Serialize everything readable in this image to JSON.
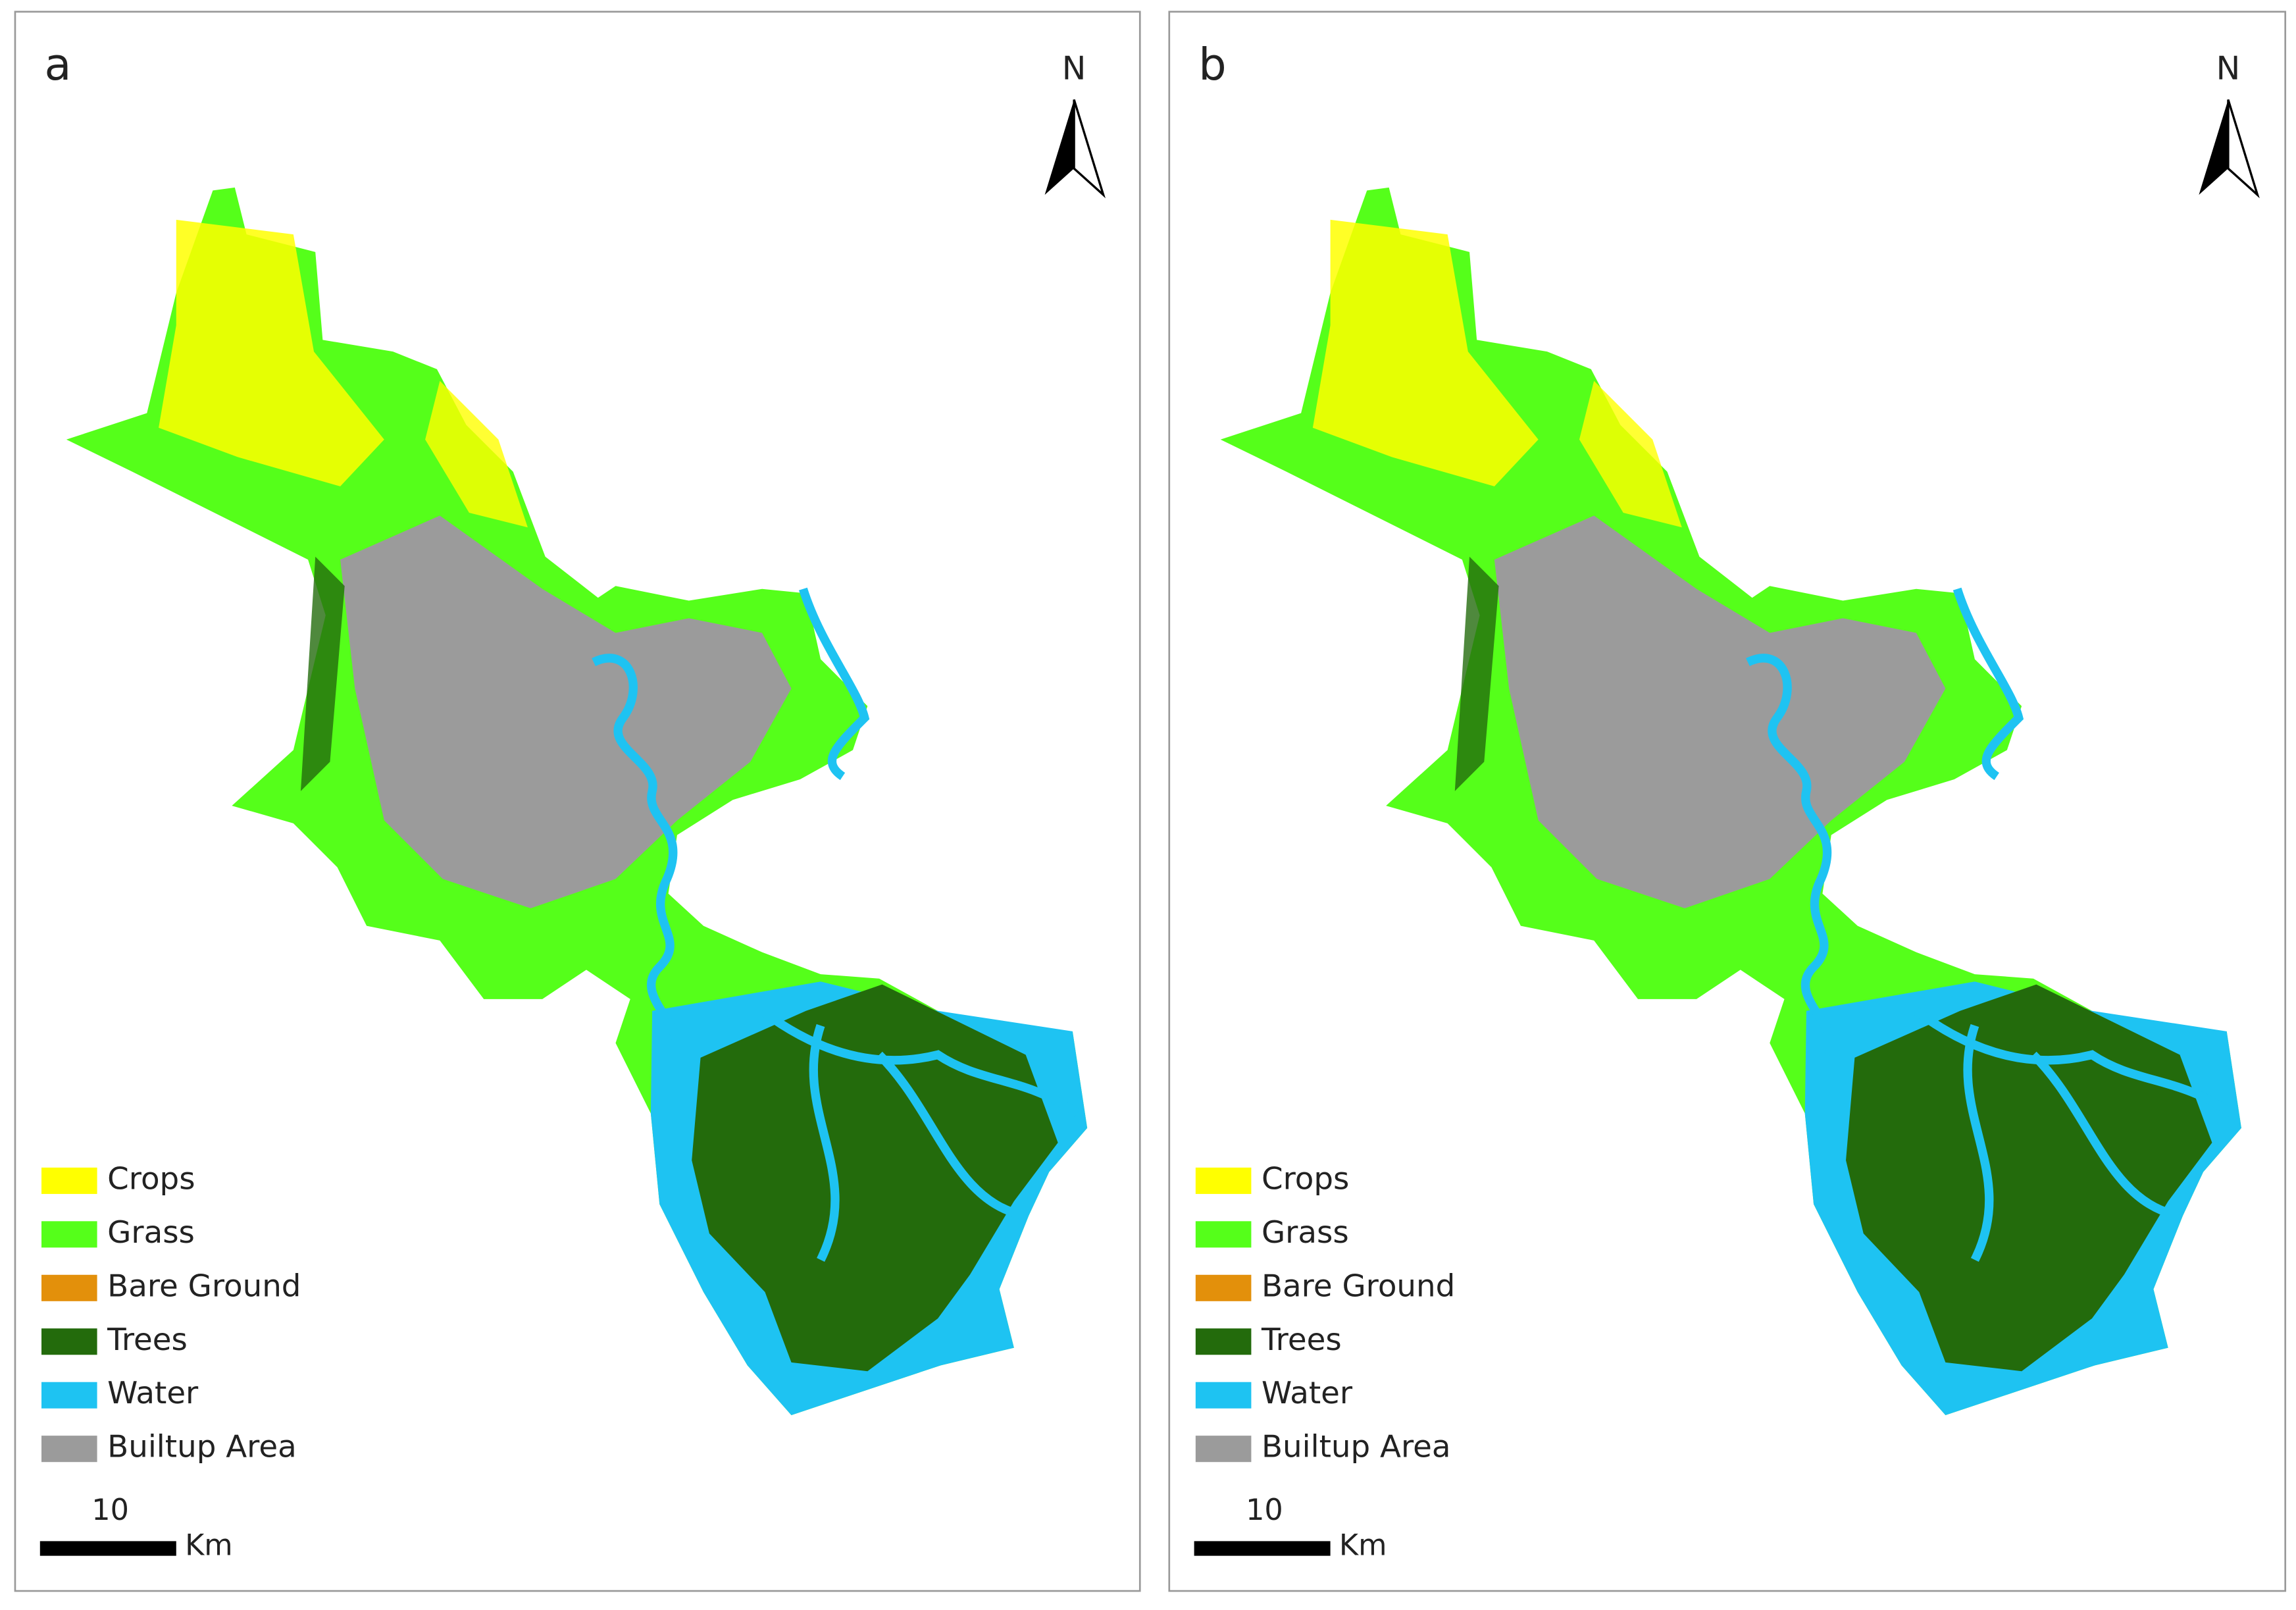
{
  "panels": [
    {
      "label": "a",
      "north": "N",
      "legend": [
        {
          "label": "Crops",
          "color": "#ffff00"
        },
        {
          "label": "Grass",
          "color": "#55ff1a"
        },
        {
          "label": "Bare Ground",
          "color": "#e3900b"
        },
        {
          "label": "Trees",
          "color": "#236b0c"
        },
        {
          "label": "Water",
          "color": "#1ec3f2"
        },
        {
          "label": "Builtup Area",
          "color": "#9b9b9b"
        }
      ],
      "scale": {
        "value": "10",
        "unit": "Km"
      }
    },
    {
      "label": "b",
      "north": "N",
      "legend": [
        {
          "label": "Crops",
          "color": "#ffff00"
        },
        {
          "label": "Grass",
          "color": "#55ff1a"
        },
        {
          "label": "Bare Ground",
          "color": "#e3900b"
        },
        {
          "label": "Trees",
          "color": "#236b0c"
        },
        {
          "label": "Water",
          "color": "#1ec3f2"
        },
        {
          "label": "Builtup Area",
          "color": "#9b9b9b"
        }
      ],
      "scale": {
        "value": "10",
        "unit": "Km"
      }
    }
  ]
}
